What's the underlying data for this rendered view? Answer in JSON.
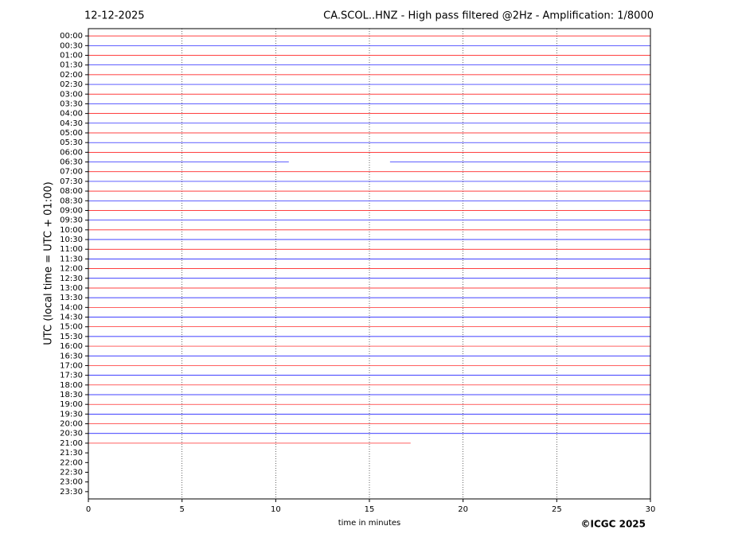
{
  "chart_data": {
    "type": "helicorder",
    "date": "12-12-2025",
    "title": "CA.SCOL..HNZ - High pass filtered @2Hz - Amplification: 1/8000",
    "ylabel": "UTC (local time = UTC + 01:00)",
    "xlabel": "time in minutes",
    "copyright": "©ICGC 2025",
    "rows": [
      "00:00",
      "00:30",
      "01:00",
      "01:30",
      "02:00",
      "02:30",
      "03:00",
      "03:30",
      "04:00",
      "04:30",
      "05:00",
      "05:30",
      "06:00",
      "06:30",
      "07:00",
      "07:30",
      "08:00",
      "08:30",
      "09:00",
      "09:30",
      "10:00",
      "10:30",
      "11:00",
      "11:30",
      "12:00",
      "12:30",
      "13:00",
      "13:30",
      "14:00",
      "14:30",
      "15:00",
      "15:30",
      "16:00",
      "16:30",
      "17:00",
      "17:30",
      "18:00",
      "18:30",
      "19:00",
      "19:30",
      "20:00",
      "20:30",
      "21:00",
      "21:30",
      "22:00",
      "22:30",
      "23:00",
      "23:30"
    ],
    "row_colors": [
      "#ff0000",
      "#0000ff"
    ],
    "x_start": [
      0,
      0,
      0,
      0,
      0,
      0,
      0,
      0,
      0,
      0,
      0,
      0,
      0,
      0,
      0,
      0,
      0,
      0,
      0,
      0,
      0,
      0,
      0,
      0,
      0,
      0,
      0,
      0,
      0,
      0,
      0,
      0,
      0,
      0,
      0,
      0,
      0,
      0,
      0,
      0,
      0,
      0,
      0,
      null,
      null,
      null,
      null,
      null
    ],
    "x_end": [
      30,
      30,
      30,
      30,
      30,
      30,
      30,
      30,
      30,
      30,
      30,
      30,
      30,
      30,
      30,
      30,
      30,
      30,
      30,
      30,
      30,
      30,
      30,
      30,
      30,
      30,
      30,
      30,
      30,
      30,
      30,
      30,
      30,
      30,
      30,
      30,
      30,
      30,
      30,
      30,
      30,
      30,
      17.2,
      null,
      null,
      null,
      null,
      null
    ],
    "gaps": [
      {
        "row": 13,
        "from": 10.7,
        "to": 16.1
      }
    ],
    "xlim": [
      0,
      30
    ],
    "xticks": [
      0,
      5,
      10,
      15,
      20,
      25,
      30
    ],
    "grid": true
  }
}
